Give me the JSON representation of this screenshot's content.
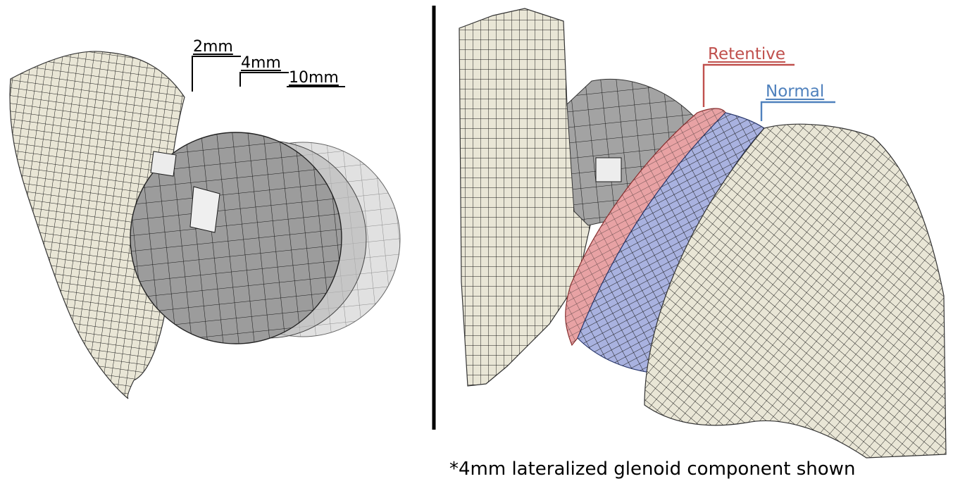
{
  "labels": {
    "lat_2mm": "2mm",
    "lat_4mm": "4mm",
    "lat_10mm": "10mm",
    "retentive": "Retentive",
    "normal": "Normal",
    "footnote": "*4mm lateralized glenoid component shown"
  },
  "colors": {
    "bone": "#e9e6d6",
    "bone_dark": "#cfcab4",
    "sphere": "#9c9c9c",
    "sphere_light": "#c7c7c7",
    "mesh_line": "#1a1a1a",
    "retentive": "#c0504d",
    "retentive_fill": "#e8a2a4",
    "normal": "#4f81bd",
    "normal_fill": "#a9b2e0",
    "divider": "#000000"
  }
}
